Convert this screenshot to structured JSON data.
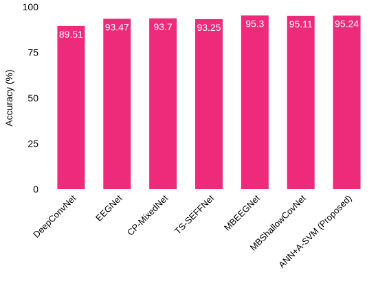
{
  "chart_data": {
    "type": "bar",
    "title": "",
    "xlabel": "",
    "ylabel": "Accuracy (%)",
    "ylim": [
      0,
      100
    ],
    "yticks": [
      0,
      25,
      50,
      75,
      100
    ],
    "grid": false,
    "categories": [
      "DeepConvNet",
      "EEGNet",
      "CP-MixedNet",
      "TS-SEFFNet",
      "MBEEGNet",
      "MBShallowCovNet",
      "ANN+A-SVM (Proposed)"
    ],
    "values": [
      89.51,
      93.47,
      93.7,
      93.25,
      95.3,
      95.11,
      95.24
    ],
    "data_labels": [
      "89.51",
      "93.47",
      "93.7",
      "93.25",
      "95.3",
      "95.11",
      "95.24"
    ],
    "bar_color": "#EE2A7B",
    "data_label_color": "#FFFFFF"
  }
}
